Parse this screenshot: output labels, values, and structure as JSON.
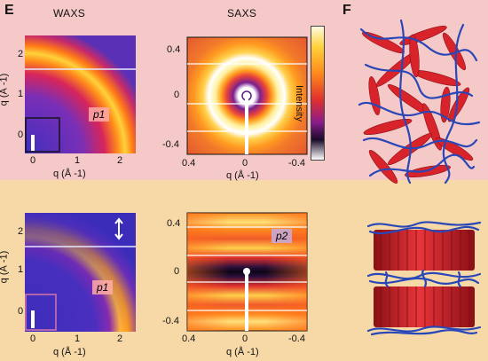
{
  "figure": {
    "panel_letters": [
      "E",
      "F"
    ],
    "column_headers": [
      "WAXS",
      "SAXS"
    ],
    "colorbar_label": "Intensity",
    "colors": {
      "top_background": "#f6c9c9",
      "bottom_background": "#f7d9a8",
      "rod": "#d8232a",
      "chain": "#2a47b8"
    }
  },
  "chart_data": [
    {
      "type": "heatmap",
      "panel": "E top WAXS",
      "xlabel": "q (Å -1)",
      "ylabel": "q (Å -1)",
      "x_ticks": [
        "0",
        "1",
        "2"
      ],
      "y_ticks": [
        "0",
        "1",
        "2"
      ],
      "annotation": "p1",
      "pattern": "isotropic ring"
    },
    {
      "type": "heatmap",
      "panel": "E top SAXS",
      "xlabel": "q (Å -1)",
      "x_ticks": [
        "0.4",
        "0",
        "-0.4"
      ],
      "y_ticks": [
        "0.4",
        "0",
        "-0.4"
      ],
      "pattern": "isotropic rings"
    },
    {
      "type": "heatmap",
      "panel": "E bottom WAXS",
      "xlabel": "q (Å -1)",
      "ylabel": "q (Å -1)",
      "x_ticks": [
        "0",
        "1",
        "2"
      ],
      "y_ticks": [
        "0",
        "1",
        "2"
      ],
      "annotation": "p1",
      "pattern": "oriented arc"
    },
    {
      "type": "heatmap",
      "panel": "E bottom SAXS",
      "xlabel": "q (Å -1)",
      "x_ticks": [
        "0.4",
        "0",
        "-0.4"
      ],
      "y_ticks": [
        "0.4",
        "0",
        "-0.4"
      ],
      "annotation": "p2",
      "pattern": "layered streaks"
    }
  ]
}
